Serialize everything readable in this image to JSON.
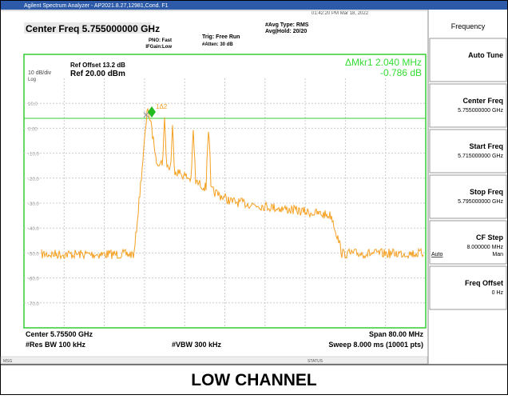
{
  "titlebar": "Agilent Spectrum Analyzer - AP2021.8.27,12981,Cond. F1",
  "timestamp": "01:42:20 PM Mar 18, 2022",
  "header": {
    "center_freq": "Center Freq 5.755000000 GHz",
    "pno": "PNO: Fast",
    "ifgain": "IFGain:Low",
    "trig": "Trig: Free Run",
    "atten": "#Atten: 30 dB",
    "avg_type": "#Avg Type: RMS",
    "avg_hold": "Avg|Hold: 20/20"
  },
  "display": {
    "scale": "10 dB/div",
    "log": "Log",
    "ref_offset": "Ref Offset 13.2 dB",
    "ref_level": "Ref 20.00 dBm",
    "marker_delta": "ΔMkr1 2.040 MHz",
    "marker_level": "-0.786 dB",
    "marker_tag": "1Δ2",
    "y_labels": [
      "10.0",
      "0.00",
      "-10.0",
      "-20.0",
      "-30.0",
      "-40.0",
      "-50.0",
      "-60.0",
      "-70.0"
    ]
  },
  "footer": {
    "center": "Center 5.75500 GHz",
    "span": "Span 80.00 MHz",
    "rbw": "#Res BW 100 kHz",
    "vbw": "#VBW 300 kHz",
    "sweep": "Sweep  8.000 ms (10001 pts)"
  },
  "statusbar": {
    "msg": "MSG",
    "status": "STATUS"
  },
  "softkeys": {
    "menu": "Frequency",
    "keys": [
      {
        "label": "Auto Tune"
      },
      {
        "label": "Center Freq",
        "value": "5.755000000 GHz"
      },
      {
        "label": "Start Freq",
        "value": "5.715000000 GHz"
      },
      {
        "label": "Stop Freq",
        "value": "5.795000000 GHz"
      },
      {
        "label": "CF Step",
        "value": "8.000000 MHz",
        "auto": "Auto",
        "man": "Man"
      },
      {
        "label": "Freq Offset",
        "value": "0 Hz"
      }
    ]
  },
  "caption": "LOW CHANNEL"
}
